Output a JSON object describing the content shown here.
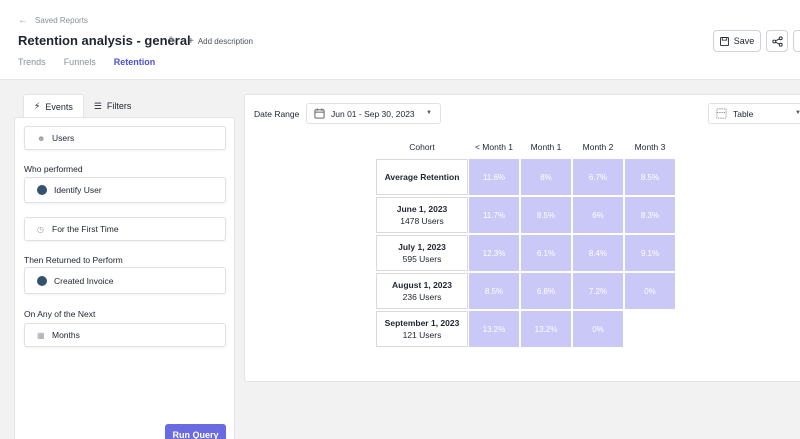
{
  "header": {
    "back_label": "Saved Reports",
    "title": "Retention analysis - general",
    "add_description": "Add description",
    "tabs": [
      {
        "label": "Trends"
      },
      {
        "label": "Funnels"
      },
      {
        "label": "Retention"
      }
    ],
    "active_tab": "Retention",
    "save_label": "Save"
  },
  "left_panel": {
    "tabs": [
      {
        "label": "Events"
      },
      {
        "label": "Filters"
      }
    ],
    "users_field": "Users",
    "who_performed_label": "Who performed",
    "first_event": "Identify User",
    "frequency": "For the First Time",
    "returned_label": "Then Returned to Perform",
    "return_event": "Created Invoice",
    "next_label": "On Any of the Next",
    "period": "Months",
    "run_label": "Run Query"
  },
  "main": {
    "date_range_label": "Date Range",
    "date_range_value": "Jun 01 - Sep 30, 2023",
    "view_value": "Table"
  },
  "colors": {
    "accent": "#4e4fd1",
    "cell": "#c9c8f6",
    "run_button": "#6a6be0",
    "event_dot": "#34516e"
  },
  "chart_data": {
    "type": "table",
    "columns": [
      "Cohort",
      "< Month 1",
      "Month 1",
      "Month 2",
      "Month 3"
    ],
    "rows": [
      {
        "cohort": "Average Retention",
        "users": "",
        "values": [
          "11.6%",
          "8%",
          "6.7%",
          "8.5%"
        ]
      },
      {
        "cohort": "June 1, 2023",
        "users": "1478 Users",
        "values": [
          "11.7%",
          "8.5%",
          "6%",
          "8.3%"
        ]
      },
      {
        "cohort": "July 1, 2023",
        "users": "595 Users",
        "values": [
          "12.3%",
          "6.1%",
          "8.4%",
          "9.1%"
        ]
      },
      {
        "cohort": "August 1, 2023",
        "users": "236 Users",
        "values": [
          "8.5%",
          "6.8%",
          "7.2%",
          "0%"
        ]
      },
      {
        "cohort": "September 1, 2023",
        "users": "121 Users",
        "values": [
          "13.2%",
          "13.2%",
          "0%"
        ]
      }
    ]
  }
}
